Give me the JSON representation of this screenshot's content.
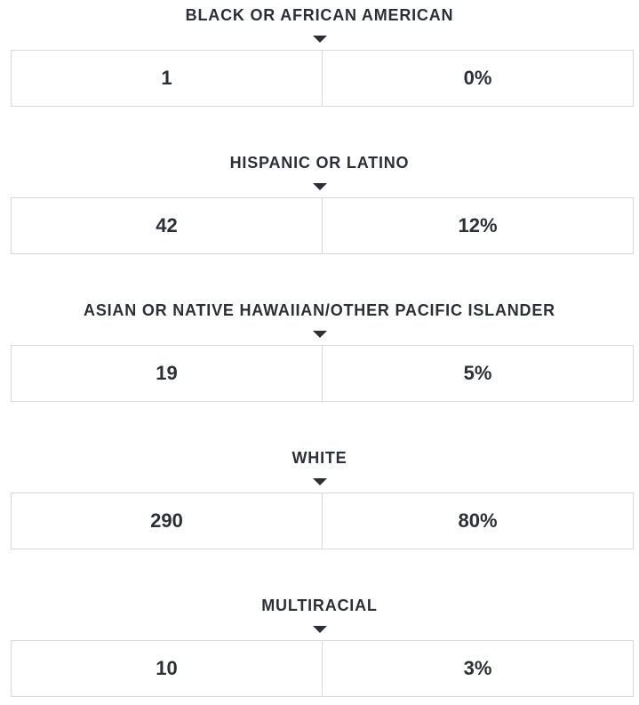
{
  "groups": [
    {
      "label": "BLACK OR AFRICAN AMERICAN",
      "count": "1",
      "percent": "0%"
    },
    {
      "label": "HISPANIC OR LATINO",
      "count": "42",
      "percent": "12%"
    },
    {
      "label": "ASIAN OR NATIVE HAWAIIAN/OTHER PACIFIC ISLANDER",
      "count": "19",
      "percent": "5%"
    },
    {
      "label": "WHITE",
      "count": "290",
      "percent": "80%"
    },
    {
      "label": "MULTIRACIAL",
      "count": "10",
      "percent": "3%"
    }
  ],
  "icons": {
    "caret": "caret-down-icon"
  },
  "colors": {
    "text": "#2c2f36",
    "border": "#d8d8d8",
    "background": "#ffffff"
  }
}
